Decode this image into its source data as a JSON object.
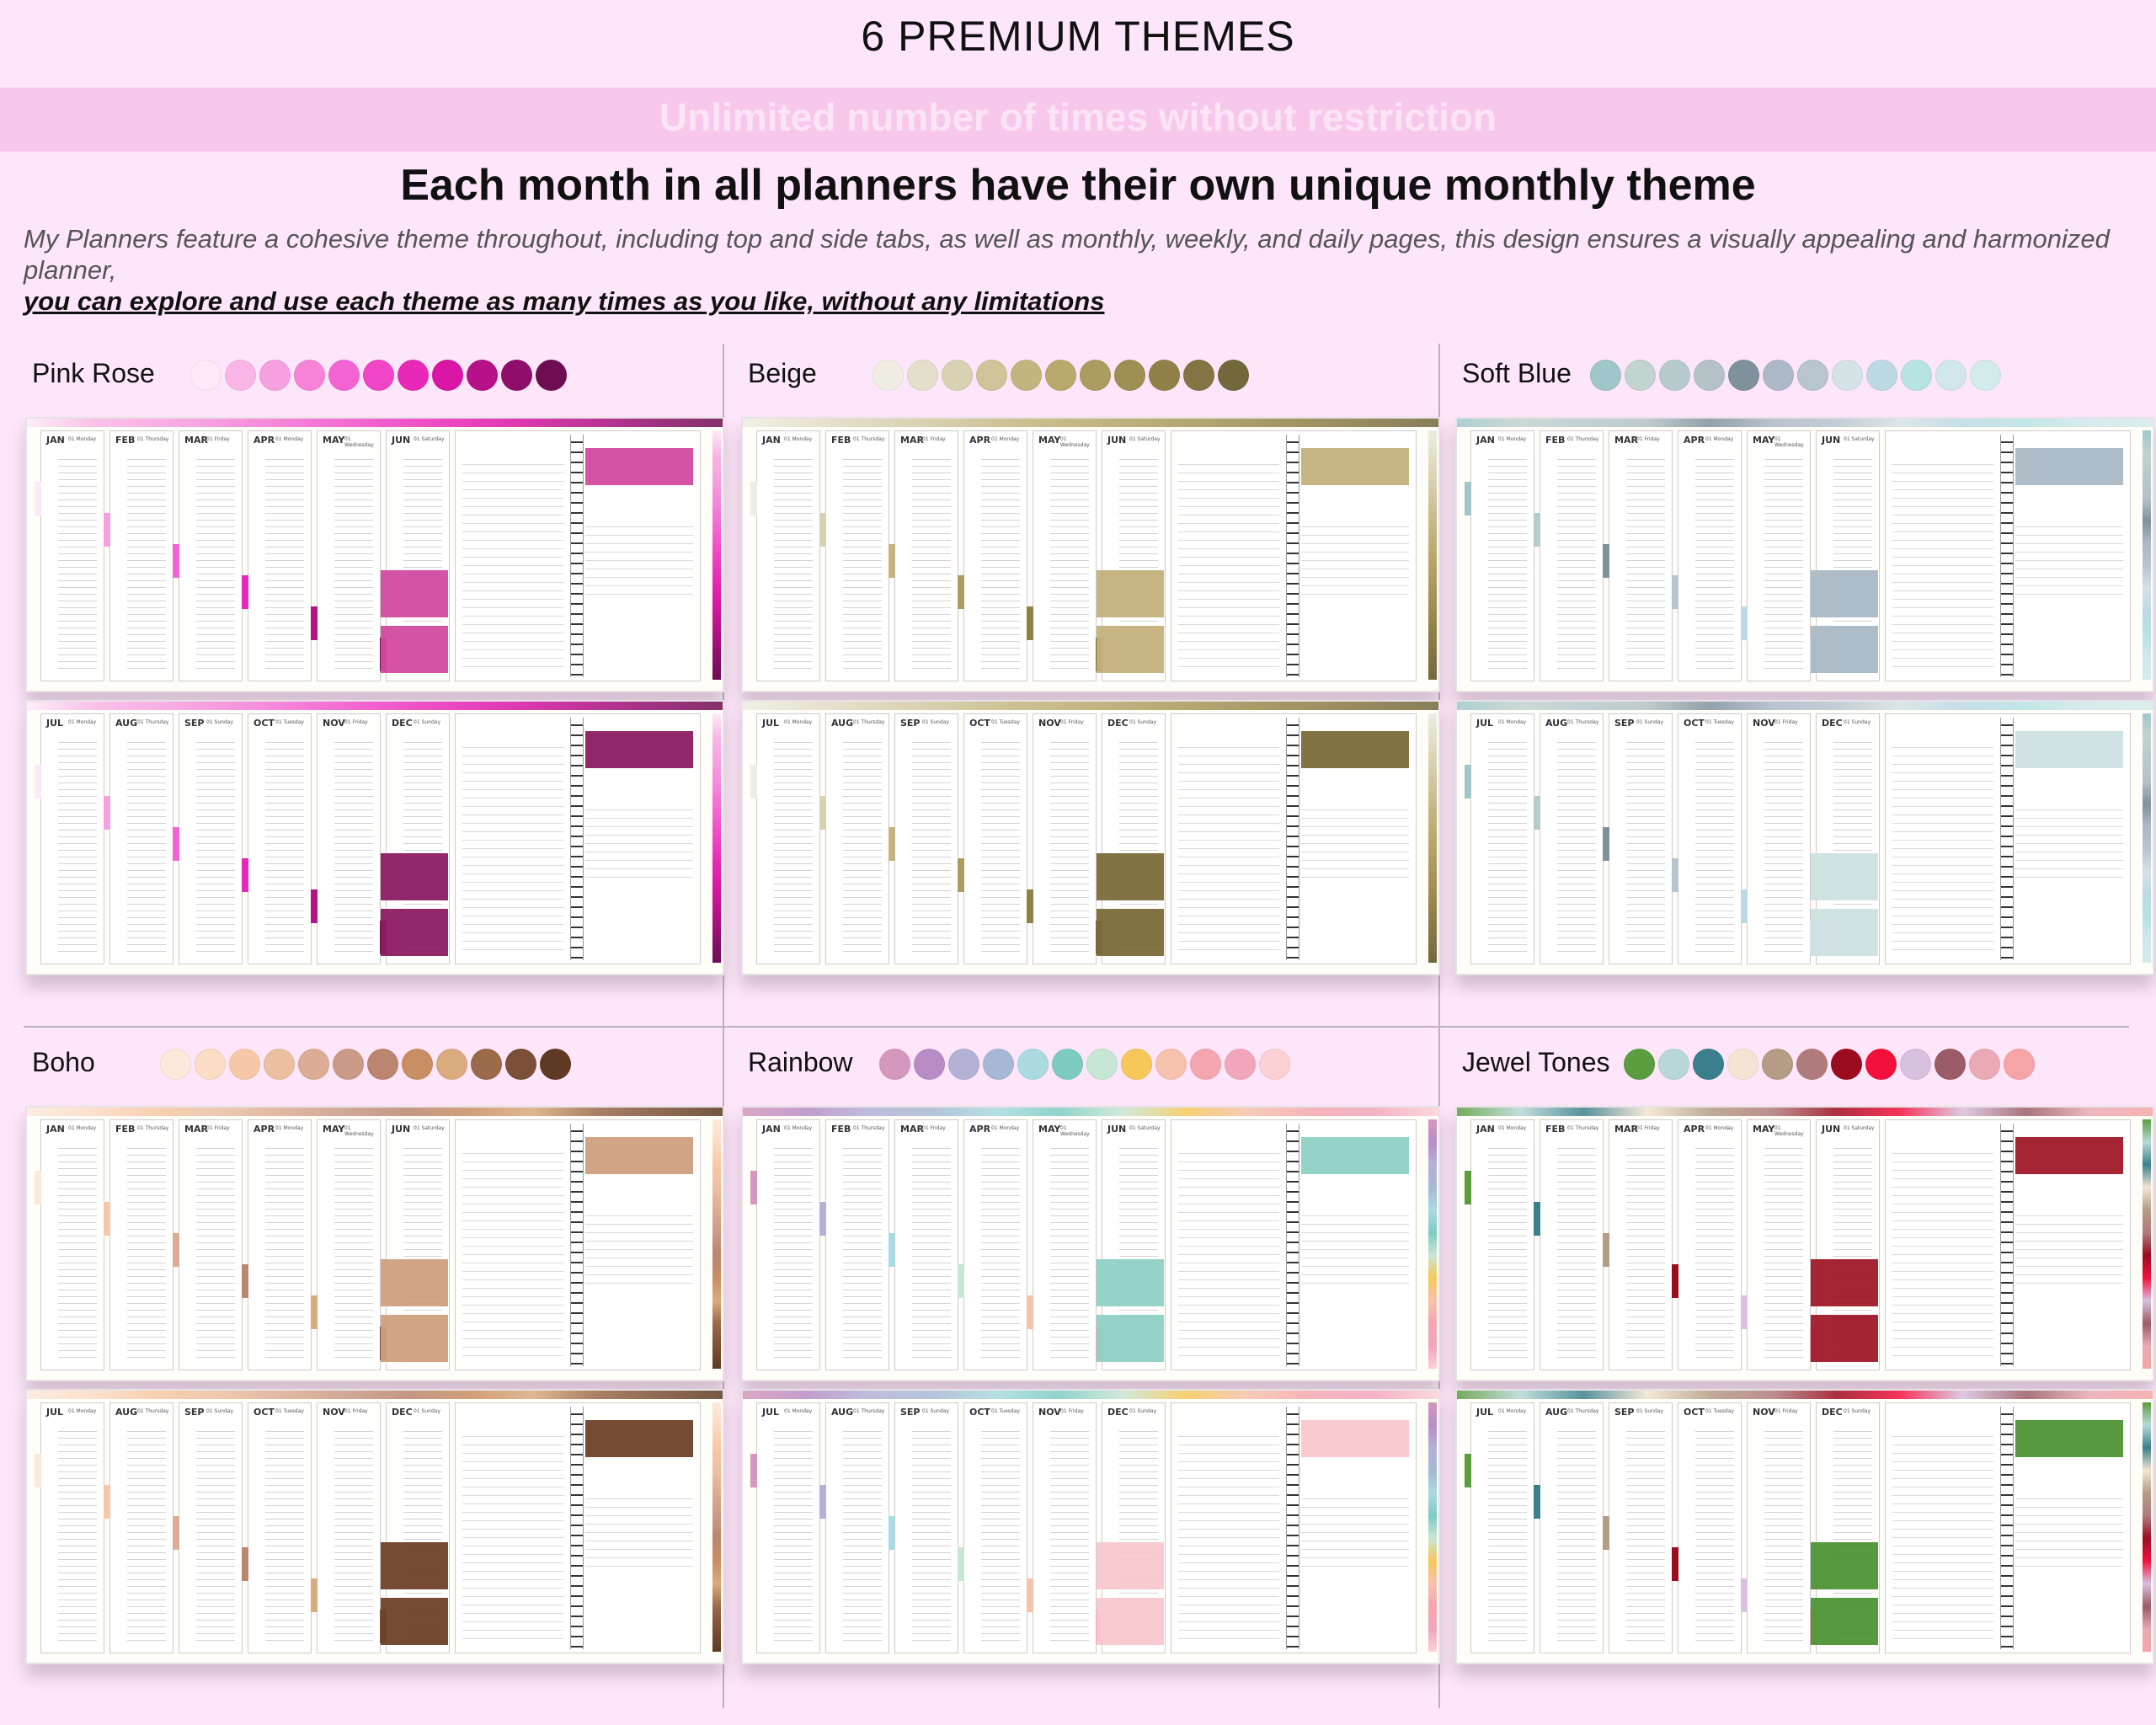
{
  "header": {
    "title": "6 PREMIUM THEMES",
    "banner": "Unlimited number of times without restriction",
    "subheading": "Each month in all planners have their own unique monthly theme",
    "description": "My Planners feature a cohesive theme throughout, including top and side tabs, as well as monthly, weekly, and daily pages, this design ensures a visually appealing and harmonized planner,",
    "description_emphasis": "you can explore and use each theme as many times as you like, without any limitations"
  },
  "months_first_half": [
    "JAN",
    "FEB",
    "MAR",
    "APR",
    "MAY",
    "JUN"
  ],
  "months_second_half": [
    "JUL",
    "AUG",
    "SEP",
    "OCT",
    "NOV",
    "DEC"
  ],
  "days_first_half": [
    "01 Monday",
    "01 Thursday",
    "01 Friday",
    "01 Monday",
    "01 Wednesday",
    "01 Saturday"
  ],
  "days_second_half": [
    "01 Monday",
    "01 Thursday",
    "01 Sunday",
    "01 Tuesday",
    "01 Friday",
    "01 Sunday"
  ],
  "themes": [
    {
      "name": "Pink Rose",
      "swatches": [
        "#fcebf6",
        "#f9b5e6",
        "#f7a0e0",
        "#f584d9",
        "#f364d2",
        "#ef45c6",
        "#e829b8",
        "#d916a6",
        "#b61189",
        "#8f0e6c",
        "#6e0d52"
      ],
      "accent_top": "#d34a9f",
      "accent_bottom": "#8c1c62"
    },
    {
      "name": "Beige",
      "swatches": [
        "#efece3",
        "#e4dfca",
        "#d8d1b2",
        "#cec399",
        "#c3b57f",
        "#b9a96d",
        "#ad9c5f",
        "#a08f53",
        "#918148",
        "#847443",
        "#73683c"
      ],
      "accent_top": "#c4b07c",
      "accent_bottom": "#7b6b3a"
    },
    {
      "name": "Soft Blue",
      "swatches": [
        "#9fc7c9",
        "#c2d3d0",
        "#b7cacc",
        "#b4c2c6",
        "#7f919c",
        "#aeb9c8",
        "#b8c4ce",
        "#d5e2e6",
        "#bcd9e5",
        "#b8e3e3",
        "#d2e7ec",
        "#d3ecea"
      ],
      "accent_top": "#a9b8c4",
      "accent_bottom": "#cfe0e2"
    },
    {
      "name": "Boho",
      "swatches": [
        "#fde9dc",
        "#fbdcc5",
        "#f7c8a7",
        "#ebc0a1",
        "#dcac94",
        "#c99b86",
        "#bb8570",
        "#c98e64",
        "#d9ab7e",
        "#9a6a4a",
        "#7b5036",
        "#5e3a22"
      ],
      "accent_top": "#cf9f80",
      "accent_bottom": "#6e4128"
    },
    {
      "name": "Rainbow",
      "swatches": [
        "#d597bd",
        "#b88dc6",
        "#b3b1d6",
        "#a6b8d4",
        "#a9dbe0",
        "#7ecbc3",
        "#c7e6d4",
        "#f6c85a",
        "#f6c2ad",
        "#f4a6b0",
        "#f1a6bb",
        "#fbd1d6"
      ],
      "accent_top": "#8fd0c4",
      "accent_bottom": "#f8c8cf"
    },
    {
      "name": "Jewel Tones",
      "swatches": [
        "#5c9d3f",
        "#b8d8d8",
        "#3b7f8c",
        "#f3e5d3",
        "#b49c86",
        "#b07b7c",
        "#9c0c20",
        "#f4103d",
        "#d8c0df",
        "#9a5c66",
        "#eaaab5",
        "#f6a4a6"
      ],
      "accent_top": "#a0192a",
      "accent_bottom": "#4e9335"
    }
  ]
}
